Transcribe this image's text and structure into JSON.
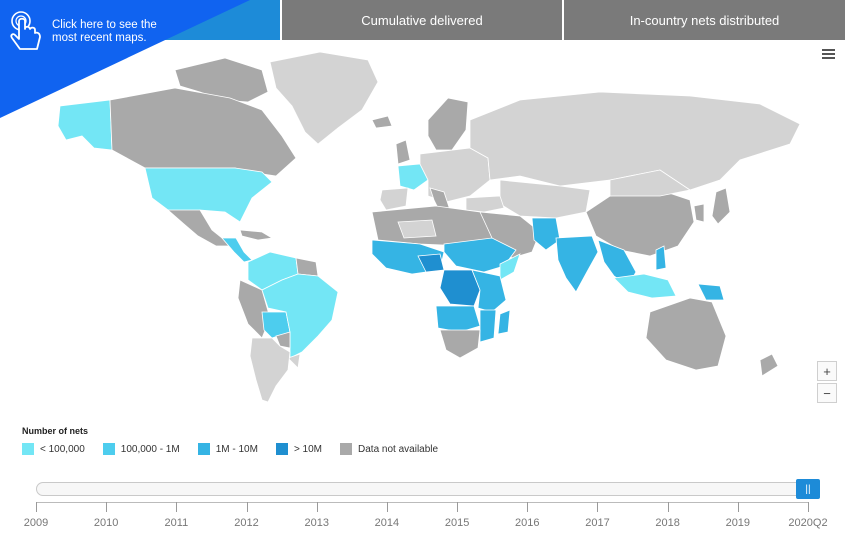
{
  "tabs": [
    {
      "label": ""
    },
    {
      "label": "Cumulative delivered"
    },
    {
      "label": "In-country nets distributed"
    }
  ],
  "callout": {
    "text": "Click here to see the most recent maps.",
    "icon": "pointing-hand-icon"
  },
  "menu_icon": "hamburger-menu-icon",
  "zoom": {
    "in_label": "+",
    "out_label": "−"
  },
  "legend": {
    "title": "Number of nets",
    "items": [
      {
        "label": "< 100,000",
        "color": "#73e6f5"
      },
      {
        "label": "100,000 - 1M",
        "color": "#4dcdee"
      },
      {
        "label": "1M - 10M",
        "color": "#35b4e4"
      },
      {
        "label": "> 10M",
        "color": "#1f8fd0"
      },
      {
        "label": "Data not available",
        "color": "#a9a9a9"
      }
    ]
  },
  "colors": {
    "light_gray": "#d3d3d3",
    "dark_gray": "#a9a9a9",
    "water": "#ffffff",
    "accent": "#1d8bd8"
  },
  "timeline": {
    "ticks": [
      "2009",
      "2010",
      "2011",
      "2012",
      "2013",
      "2014",
      "2015",
      "2016",
      "2017",
      "2018",
      "2019",
      "2020Q2"
    ],
    "selected": "2020Q2",
    "handle_label": "||"
  }
}
